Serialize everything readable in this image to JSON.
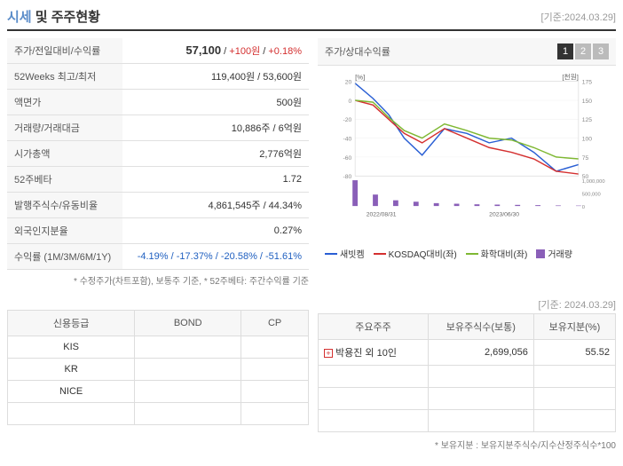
{
  "header": {
    "title_prefix": "시세",
    "title_rest": " 및 주주현황",
    "date_label": "[기준:2024.03.29]"
  },
  "info_rows": [
    {
      "label": "주가/전일대비/수익률",
      "value_html": true,
      "price": "57,100",
      "diff": "+100원",
      "pct": "+0.18%"
    },
    {
      "label": "52Weeks 최고/최저",
      "value": "119,400원 / 53,600원"
    },
    {
      "label": "액면가",
      "value": "500원"
    },
    {
      "label": "거래량/거래대금",
      "value": "10,886주 / 6억원"
    },
    {
      "label": "시가총액",
      "value": "2,776억원"
    },
    {
      "label": "52주베타",
      "value": "1.72"
    },
    {
      "label": "발행주식수/유동비율",
      "value": "4,861,545주 / 44.34%"
    },
    {
      "label": "외국인지분율",
      "value": "0.27%"
    },
    {
      "label": "수익률 (1M/3M/6M/1Y)",
      "value_returns": true,
      "returns": "-4.19% / -17.37% / -20.58% / -51.61%"
    }
  ],
  "left_footnote": "* 수정주가(차트포함), 보통주 기준, * 52주베타: 주간수익률 기준",
  "chart": {
    "header_title": "주가/상대수익률",
    "tabs": [
      "1",
      "2",
      "3"
    ],
    "active_tab": 0,
    "y_left_label": "[%]",
    "y_right_label": "[천원]",
    "y_left_ticks": [
      "20",
      "0",
      "-20",
      "-40",
      "-60",
      "-80"
    ],
    "y_right_ticks": [
      "175",
      "150",
      "125",
      "100",
      "75",
      "50"
    ],
    "y_right_vol": [
      "1,000,000",
      "500,000",
      "0"
    ],
    "x_labels": [
      "2022/08/31",
      "2023/06/30"
    ],
    "series": {
      "line1": {
        "name": "새빗켐",
        "color": "#2a5fd4",
        "points": [
          [
            0,
            18
          ],
          [
            8,
            2
          ],
          [
            15,
            -15
          ],
          [
            22,
            -40
          ],
          [
            30,
            -58
          ],
          [
            40,
            -30
          ],
          [
            50,
            -35
          ],
          [
            60,
            -45
          ],
          [
            70,
            -40
          ],
          [
            80,
            -55
          ],
          [
            90,
            -75
          ],
          [
            100,
            -68
          ]
        ]
      },
      "line2": {
        "name": "KOSDAQ대비(좌)",
        "color": "#d43030",
        "points": [
          [
            0,
            0
          ],
          [
            8,
            -5
          ],
          [
            15,
            -20
          ],
          [
            22,
            -35
          ],
          [
            30,
            -45
          ],
          [
            40,
            -30
          ],
          [
            50,
            -40
          ],
          [
            60,
            -50
          ],
          [
            70,
            -55
          ],
          [
            80,
            -62
          ],
          [
            90,
            -75
          ],
          [
            100,
            -78
          ]
        ]
      },
      "line3": {
        "name": "화학대비(좌)",
        "color": "#7fb833",
        "points": [
          [
            0,
            0
          ],
          [
            8,
            -2
          ],
          [
            15,
            -18
          ],
          [
            22,
            -32
          ],
          [
            30,
            -40
          ],
          [
            40,
            -25
          ],
          [
            50,
            -32
          ],
          [
            60,
            -40
          ],
          [
            70,
            -42
          ],
          [
            80,
            -50
          ],
          [
            90,
            -60
          ],
          [
            100,
            -62
          ]
        ]
      },
      "volume": {
        "name": "거래량",
        "color": "#8a5fb8",
        "bars": [
          900000,
          400000,
          200000,
          150000,
          100000,
          80000,
          60000,
          50000,
          40000,
          30000,
          20000,
          15000
        ]
      }
    }
  },
  "credit_table": {
    "headers": [
      "신용등급",
      "BOND",
      "CP"
    ],
    "rows": [
      [
        "KIS",
        "",
        ""
      ],
      [
        "KR",
        "",
        ""
      ],
      [
        "NICE",
        "",
        ""
      ]
    ]
  },
  "shareholders": {
    "date_label": "[기준: 2024.03.29]",
    "headers": [
      "주요주주",
      "보유주식수(보통)",
      "보유지분(%)"
    ],
    "rows": [
      {
        "name": "박용진 외 10인",
        "shares": "2,699,056",
        "pct": "55.52",
        "expandable": true
      }
    ],
    "blank_rows": 3
  },
  "bottom_note": "* 보유지분 : 보유지분주식수/지수산정주식수*100"
}
